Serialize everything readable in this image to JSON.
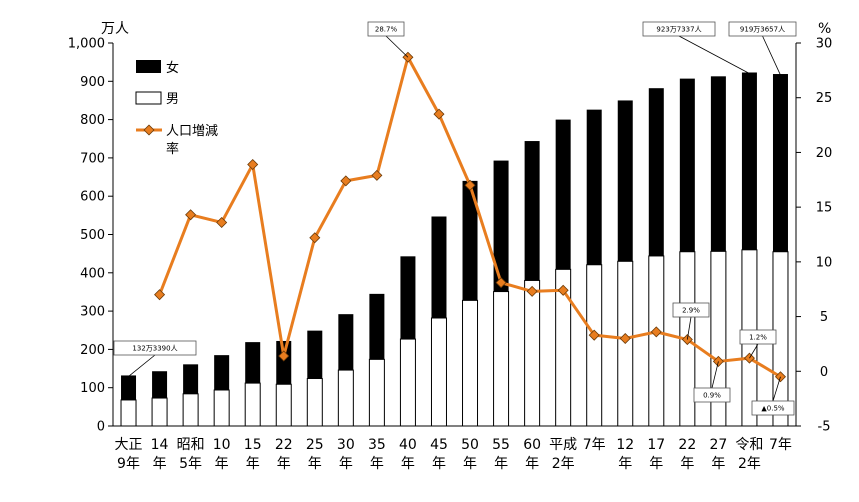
{
  "chart_data": {
    "type": "bar",
    "stacked": true,
    "left_unit": "万人",
    "right_unit": "%",
    "left_ticks": [
      "0",
      "100",
      "200",
      "300",
      "400",
      "500",
      "600",
      "700",
      "800",
      "900",
      "1,000"
    ],
    "right_ticks": [
      "-5",
      "0",
      "5",
      "10",
      "15",
      "20",
      "25",
      "30"
    ],
    "ylim_left": [
      0,
      1000
    ],
    "ylim_right": [
      -5,
      30
    ],
    "categories": [
      [
        "大正",
        "9年"
      ],
      [
        "14",
        "年"
      ],
      [
        "昭和",
        "5年"
      ],
      [
        "10",
        "年"
      ],
      [
        "15",
        "年"
      ],
      [
        "22",
        "年"
      ],
      [
        "25",
        "年"
      ],
      [
        "30",
        "年"
      ],
      [
        "35",
        "年"
      ],
      [
        "40",
        "年"
      ],
      [
        "45",
        "年"
      ],
      [
        "50",
        "年"
      ],
      [
        "55",
        "年"
      ],
      [
        "60",
        "年"
      ],
      [
        "平成",
        "2年"
      ],
      [
        "7年",
        ""
      ],
      [
        "12",
        "年"
      ],
      [
        "17",
        "年"
      ],
      [
        "22",
        "年"
      ],
      [
        "27",
        "年"
      ],
      [
        "令和",
        "2年"
      ],
      [
        "7年",
        ""
      ]
    ],
    "series": [
      {
        "name": "男",
        "color": "#ffffff",
        "edge": "#000000",
        "values": [
          68,
          73,
          84,
          94,
          112,
          109,
          124,
          146,
          174,
          227,
          282,
          328,
          351,
          380,
          409,
          421,
          430,
          444,
          455,
          456,
          460,
          455
        ]
      },
      {
        "name": "女",
        "color": "#000000",
        "values": [
          64,
          70,
          77,
          91,
          107,
          113,
          125,
          146,
          171,
          216,
          265,
          312,
          342,
          364,
          391,
          405,
          420,
          438,
          452,
          457,
          463,
          464
        ]
      },
      {
        "name": "人口増減率",
        "axis": "right",
        "type": "line",
        "color": "#e87d1f",
        "values": [
          null,
          7.0,
          14.3,
          13.6,
          18.9,
          1.4,
          12.2,
          17.4,
          17.9,
          28.7,
          23.5,
          17.0,
          8.1,
          7.3,
          7.4,
          3.3,
          3.0,
          3.6,
          2.9,
          0.9,
          1.2,
          -0.5
        ]
      }
    ],
    "legend": {
      "position": "top-left",
      "line_label": [
        "人口増減",
        "率"
      ]
    },
    "callouts": [
      {
        "text": "132万3390人",
        "index": 0,
        "target": "bar"
      },
      {
        "text": "28.7%",
        "index": 9,
        "target": "line"
      },
      {
        "text": "923万7337人",
        "index": 20,
        "target": "bar"
      },
      {
        "text": "919万3657人",
        "index": 21,
        "target": "bar"
      },
      {
        "text": "2.9%",
        "index": 18,
        "target": "line"
      },
      {
        "text": "0.9%",
        "index": 19,
        "target": "line"
      },
      {
        "text": "1.2%",
        "index": 20,
        "target": "line"
      },
      {
        "text": "▲0.5%",
        "index": 21,
        "target": "line"
      }
    ]
  }
}
